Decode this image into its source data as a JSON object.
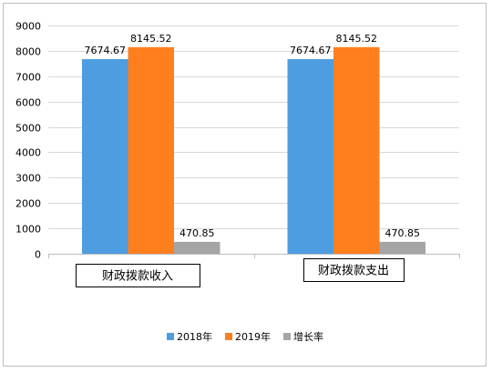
{
  "chart_data": {
    "type": "bar",
    "title": "",
    "xlabel": "",
    "ylabel": "",
    "ylim": [
      0,
      9000
    ],
    "yticks": [
      0,
      1000,
      2000,
      3000,
      4000,
      5000,
      6000,
      7000,
      8000,
      9000
    ],
    "grid": true,
    "legend_position": "bottom",
    "categories": [
      "财政拨款收入",
      "财政拨款支出"
    ],
    "series": [
      {
        "name": "2018年",
        "color": "#4e9de0",
        "values": [
          7674.67,
          7674.67
        ],
        "labels": [
          "7674.67",
          "7674.67"
        ]
      },
      {
        "name": "2019年",
        "color": "#ff7f1e",
        "values": [
          8145.52,
          8145.52
        ],
        "labels": [
          "8145.52",
          "8145.52"
        ]
      },
      {
        "name": "增长率",
        "color": "#a5a5a5",
        "values": [
          470.85,
          470.85
        ],
        "labels": [
          "470.85",
          "470.85"
        ]
      }
    ]
  }
}
